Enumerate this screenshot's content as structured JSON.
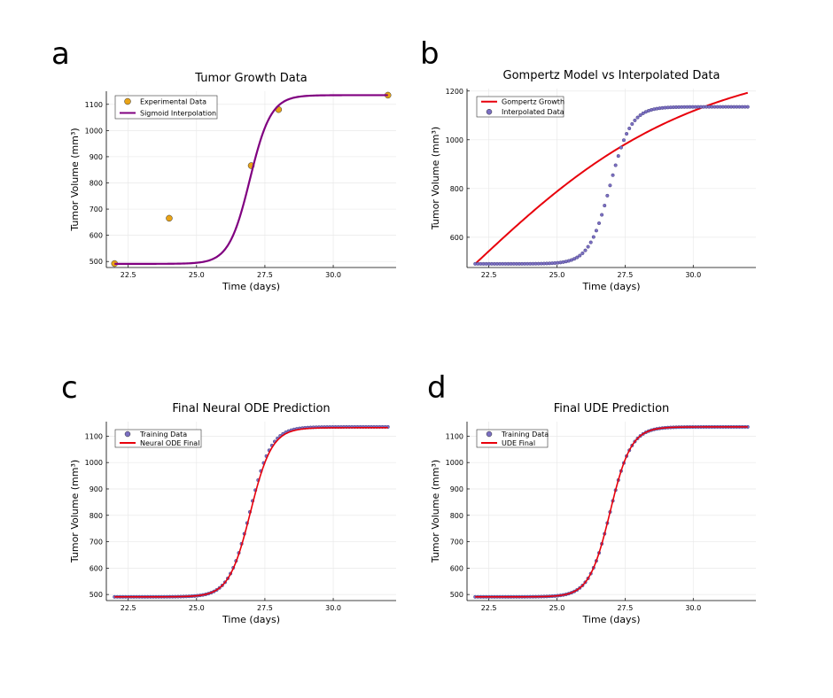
{
  "chart_data": [
    {
      "id": "a",
      "type": "line",
      "panel_label": "a",
      "title": "Tumor Growth Data",
      "xlabel": "Time (days)",
      "ylabel": "Tumor Volume (mm³)",
      "xlim": [
        21.7,
        32.3
      ],
      "ylim": [
        477,
        1150
      ],
      "xticks": [
        22.5,
        25.0,
        27.5,
        30.0
      ],
      "xtick_labels": [
        "22.5",
        "25.0",
        "27.5",
        "30.0"
      ],
      "yticks": [
        500,
        600,
        700,
        800,
        900,
        1000,
        1100
      ],
      "ytick_labels": [
        "500",
        "600",
        "700",
        "800",
        "900",
        "1000",
        "1100"
      ],
      "legend_position": "top-left",
      "legend": [
        {
          "label": "Experimental Data",
          "kind": "marker",
          "color": "#e8a317",
          "edge": "#333333",
          "r": 3.5
        },
        {
          "label": "Sigmoid Interpolation",
          "kind": "line",
          "color": "#800080"
        }
      ],
      "series": [
        {
          "name": "Experimental Data",
          "kind": "points",
          "color": "#e8a317",
          "edge": "#333333",
          "r": 3.5,
          "x": [
            22,
            24,
            27,
            28,
            32
          ],
          "y": [
            492,
            665,
            866,
            1080,
            1135
          ]
        },
        {
          "name": "Sigmoid Interpolation",
          "kind": "line",
          "color": "#800080",
          "width": 2.2,
          "gen": {
            "fn": "sigmoid",
            "x0": 22,
            "x1": 32,
            "n": 200,
            "base": 491,
            "amp": 644,
            "k": 2.6,
            "mid": 26.95
          }
        }
      ]
    },
    {
      "id": "b",
      "type": "line",
      "panel_label": "b",
      "title": "Gompertz Model vs Interpolated Data",
      "xlabel": "Time (days)",
      "ylabel": "Tumor Volume (mm³)",
      "xlim": [
        21.7,
        32.3
      ],
      "ylim": [
        476,
        1210
      ],
      "xticks": [
        22.5,
        25.0,
        27.5,
        30.0
      ],
      "xtick_labels": [
        "22.5",
        "25.0",
        "27.5",
        "30.0"
      ],
      "yticks": [
        600,
        800,
        1000,
        1200
      ],
      "ytick_labels": [
        "600",
        "800",
        "1000",
        "1200"
      ],
      "legend_position": "top-left",
      "legend": [
        {
          "label": "Gompertz Growth",
          "kind": "line",
          "color": "#e8000b"
        },
        {
          "label": "Interpolated Data",
          "kind": "marker",
          "color": "#7b6fc2",
          "edge": "#333333",
          "r": 3
        }
      ],
      "series": [
        {
          "name": "Gompertz Growth",
          "kind": "line",
          "color": "#e8000b",
          "width": 2,
          "gen": {
            "fn": "gompertz",
            "x0": 22,
            "x1": 32,
            "n": 150,
            "y0": 491,
            "K": 1350,
            "r": 0.21
          }
        },
        {
          "name": "Interpolated Data",
          "kind": "points",
          "color": "#7b6fc2",
          "edge": "#4b4486",
          "r": 1.8,
          "gen": {
            "fn": "sigmoid",
            "x0": 22,
            "x1": 32,
            "n": 100,
            "base": 491,
            "amp": 644,
            "k": 2.6,
            "mid": 26.95
          }
        }
      ]
    },
    {
      "id": "c",
      "type": "line",
      "panel_label": "c",
      "title": "Final Neural ODE Prediction",
      "xlabel": "Time (days)",
      "ylabel": "Tumor Volume (mm³)",
      "xlim": [
        21.7,
        32.3
      ],
      "ylim": [
        477,
        1155
      ],
      "xticks": [
        22.5,
        25.0,
        27.5,
        30.0
      ],
      "xtick_labels": [
        "22.5",
        "25.0",
        "27.5",
        "30.0"
      ],
      "yticks": [
        500,
        600,
        700,
        800,
        900,
        1000,
        1100
      ],
      "ytick_labels": [
        "500",
        "600",
        "700",
        "800",
        "900",
        "1000",
        "1100"
      ],
      "legend_position": "top-left",
      "legend": [
        {
          "label": "Training Data",
          "kind": "marker",
          "color": "#7b6fc2",
          "edge": "#333333",
          "r": 3
        },
        {
          "label": "Neural ODE Final",
          "kind": "line",
          "color": "#e8000b"
        }
      ],
      "series": [
        {
          "name": "Training Data",
          "kind": "points",
          "color": "#7b6fc2",
          "edge": "#4b4486",
          "r": 1.8,
          "gen": {
            "fn": "sigmoid",
            "x0": 22,
            "x1": 32,
            "n": 100,
            "base": 491,
            "amp": 644,
            "k": 2.6,
            "mid": 26.95
          }
        },
        {
          "name": "Neural ODE Final",
          "kind": "line",
          "color": "#e8000b",
          "width": 1.6,
          "gen": {
            "fn": "sigmoid",
            "x0": 22,
            "x1": 32,
            "n": 200,
            "base": 491,
            "amp": 641,
            "k": 2.55,
            "mid": 26.97
          }
        }
      ]
    },
    {
      "id": "d",
      "type": "line",
      "panel_label": "d",
      "title": "Final UDE Prediction",
      "xlabel": "Time (days)",
      "ylabel": "Tumor Volume (mm³)",
      "xlim": [
        21.7,
        32.3
      ],
      "ylim": [
        477,
        1155
      ],
      "xticks": [
        22.5,
        25.0,
        27.5,
        30.0
      ],
      "xtick_labels": [
        "22.5",
        "25.0",
        "27.5",
        "30.0"
      ],
      "yticks": [
        500,
        600,
        700,
        800,
        900,
        1000,
        1100
      ],
      "ytick_labels": [
        "500",
        "600",
        "700",
        "800",
        "900",
        "1000",
        "1100"
      ],
      "legend_position": "top-left",
      "legend": [
        {
          "label": "Training Data",
          "kind": "marker",
          "color": "#7b6fc2",
          "edge": "#333333",
          "r": 3
        },
        {
          "label": "UDE Final",
          "kind": "line",
          "color": "#e8000b"
        }
      ],
      "series": [
        {
          "name": "Training Data",
          "kind": "points",
          "color": "#7b6fc2",
          "edge": "#4b4486",
          "r": 1.8,
          "gen": {
            "fn": "sigmoid",
            "x0": 22,
            "x1": 32,
            "n": 100,
            "base": 491,
            "amp": 644,
            "k": 2.6,
            "mid": 26.95
          }
        },
        {
          "name": "UDE Final",
          "kind": "line",
          "color": "#e8000b",
          "width": 1.6,
          "gen": {
            "fn": "sigmoid",
            "x0": 22,
            "x1": 32,
            "n": 200,
            "base": 491,
            "amp": 644,
            "k": 2.6,
            "mid": 26.95
          }
        }
      ]
    }
  ]
}
